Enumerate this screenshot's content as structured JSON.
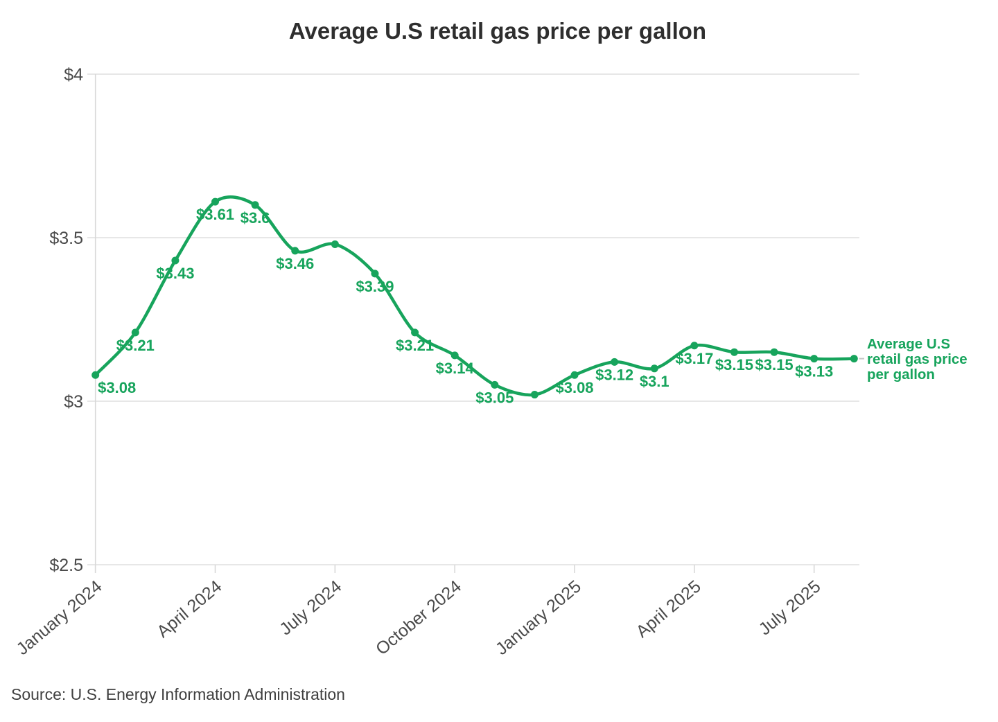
{
  "title": "Average U.S retail gas price per gallon",
  "source": "Source: U.S. Energy Information Administration",
  "series_label": {
    "lines": [
      "Average U.S",
      "retail gas price",
      "per gallon"
    ]
  },
  "colors": {
    "line": "#17a45c",
    "point": "#17a45c",
    "point_label": "#17a45c",
    "legend_text": "#17a45c",
    "title_text": "#2e2e2e",
    "axis_text": "#4a4a4a",
    "grid": "#e7e7e7",
    "axis_line": "#d8d8d8",
    "leader_dash": "#c4c4c4",
    "source_text": "#3f3f3f",
    "background": "#ffffff"
  },
  "chart_data": {
    "type": "line",
    "title": "Average U.S retail gas price per gallon",
    "xlabel": "",
    "ylabel": "",
    "series_name": "Average U.S retail gas price per gallon",
    "x": [
      "January 2024",
      "February 2024",
      "March 2024",
      "April 2024",
      "May 2024",
      "June 2024",
      "July 2024",
      "August 2024",
      "September 2024",
      "October 2024",
      "November 2024",
      "December 2024",
      "January 2025",
      "February 2025",
      "March 2025",
      "April 2025",
      "May 2025",
      "June 2025",
      "July 2025",
      "August 2025"
    ],
    "values": [
      3.08,
      3.21,
      3.43,
      3.61,
      3.6,
      3.46,
      3.48,
      3.39,
      3.21,
      3.14,
      3.05,
      3.02,
      3.08,
      3.12,
      3.1,
      3.17,
      3.15,
      3.15,
      3.13,
      3.13
    ],
    "point_labels": [
      "$3.08",
      "$3.21",
      "$3.43",
      "$3.61",
      "$3.6",
      "$3.46",
      "",
      "$3.39",
      "$3.21",
      "$3.14",
      "$3.05",
      "",
      "$3.08",
      "$3.12",
      "$3.1",
      "$3.17",
      "$3.15",
      "$3.15",
      "$3.13",
      ""
    ],
    "label_offsets": {
      "0": {
        "dx": 31,
        "dy": 26
      }
    },
    "x_tick_indices": [
      0,
      3,
      6,
      9,
      12,
      15,
      18
    ],
    "x_tick_labels": [
      "January 2024",
      "April 2024",
      "July 2024",
      "October 2024",
      "January 2025",
      "April 2025",
      "July 2025"
    ],
    "y_ticks": [
      2.5,
      3,
      3.5,
      4
    ],
    "y_tick_labels": [
      "$2.5",
      "$3",
      "$3.5",
      "$4"
    ],
    "ylim": [
      2.5,
      4
    ],
    "grid": "horizontal",
    "legend_position": "right-of-last-point"
  }
}
